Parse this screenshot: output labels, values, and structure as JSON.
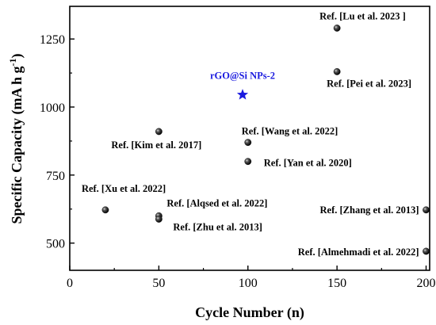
{
  "chart_data": {
    "type": "scatter",
    "title": "",
    "xlabel": "Cycle Number (n)",
    "ylabel": "Specific Capacity (mA h g",
    "ylabel_sup": "-1",
    "ylabel_close": ")",
    "xlim": [
      0,
      202
    ],
    "ylim": [
      400,
      1370
    ],
    "xticks": [
      0,
      50,
      100,
      150,
      200
    ],
    "yticks": [
      500,
      750,
      1000,
      1250
    ],
    "grid": false,
    "legend": "none",
    "colors": {
      "reference": "#111111",
      "highlight": "#1a1adf"
    },
    "highlight": {
      "name": "rGO@Si NPs-2",
      "x": 97,
      "y": 1045,
      "marker": "star"
    },
    "references": [
      {
        "label": "Ref. [Lu et al. 2023 ]",
        "x": 150,
        "y": 1290
      },
      {
        "label": "Ref. [Pei et al. 2023]",
        "x": 150,
        "y": 1130
      },
      {
        "label": "Ref. [Kim et al. 2017]",
        "x": 50,
        "y": 910
      },
      {
        "label": "Ref. [Wang et al. 2022]",
        "x": 100,
        "y": 870
      },
      {
        "label": "Ref. [Yan et al. 2020]",
        "x": 100,
        "y": 800
      },
      {
        "label": "Ref. [Xu et al. 2022]",
        "x": 20,
        "y": 622
      },
      {
        "label": "Ref. [Alqsed et al. 2022]",
        "x": 50,
        "y": 600
      },
      {
        "label": "Ref. [Zhu et al. 2013]",
        "x": 50,
        "y": 588
      },
      {
        "label": "Ref. [Zhang et al. 2013]",
        "x": 200,
        "y": 622
      },
      {
        "label": "Ref. [Almehmadi et al. 2022]",
        "x": 200,
        "y": 470
      }
    ]
  }
}
